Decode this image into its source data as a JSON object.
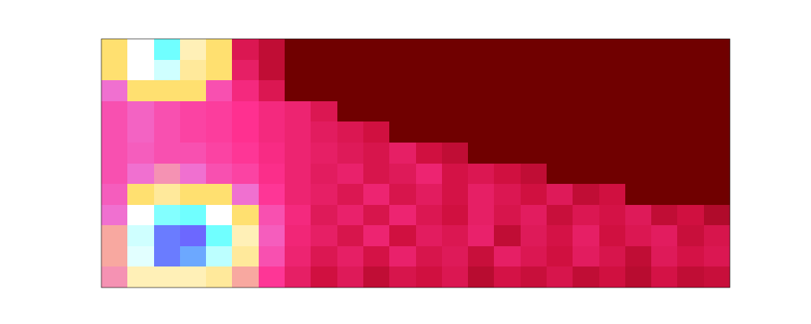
{
  "chart_data": {
    "type": "heatmap",
    "tick_labels": false,
    "zlim": [
      0,
      1
    ],
    "cells": [
      [
        0.45,
        0.55,
        0.7,
        0.5,
        0.45,
        0.15,
        0.1,
        0,
        0,
        0,
        0,
        0,
        0,
        0,
        0,
        0,
        0,
        0,
        0,
        0,
        0,
        0,
        0,
        0
      ],
      [
        0.45,
        0.55,
        0.6,
        0.48,
        0.45,
        0.18,
        0.1,
        0,
        0,
        0,
        0,
        0,
        0,
        0,
        0,
        0,
        0,
        0,
        0,
        0,
        0,
        0,
        0,
        0
      ],
      [
        0.35,
        0.45,
        0.45,
        0.45,
        0.3,
        0.22,
        0.15,
        0,
        0,
        0,
        0,
        0,
        0,
        0,
        0,
        0,
        0,
        0,
        0,
        0,
        0,
        0,
        0,
        0
      ],
      [
        0.3,
        0.33,
        0.3,
        0.28,
        0.27,
        0.25,
        0.22,
        0.2,
        0.15,
        0,
        0,
        0,
        0,
        0,
        0,
        0,
        0,
        0,
        0,
        0,
        0,
        0,
        0,
        0
      ],
      [
        0.3,
        0.33,
        0.3,
        0.28,
        0.27,
        0.25,
        0.22,
        0.2,
        0.17,
        0.15,
        0.12,
        0,
        0,
        0,
        0,
        0,
        0,
        0,
        0,
        0,
        0,
        0,
        0,
        0
      ],
      [
        0.3,
        0.32,
        0.3,
        0.3,
        0.28,
        0.26,
        0.23,
        0.2,
        0.18,
        0.16,
        0.14,
        0.18,
        0.12,
        0.1,
        0,
        0,
        0,
        0,
        0,
        0,
        0,
        0,
        0,
        0
      ],
      [
        0.3,
        0.35,
        0.38,
        0.35,
        0.3,
        0.28,
        0.24,
        0.2,
        0.17,
        0.19,
        0.14,
        0.16,
        0.2,
        0.13,
        0.15,
        0.12,
        0.1,
        0,
        0,
        0,
        0,
        0,
        0,
        0
      ],
      [
        0.32,
        0.45,
        0.48,
        0.45,
        0.45,
        0.35,
        0.26,
        0.2,
        0.18,
        0.15,
        0.2,
        0.14,
        0.17,
        0.13,
        0.18,
        0.15,
        0.12,
        0.16,
        0.1,
        0.12,
        0,
        0,
        0,
        0
      ],
      [
        0.35,
        0.55,
        0.68,
        0.7,
        0.55,
        0.45,
        0.3,
        0.22,
        0.16,
        0.19,
        0.14,
        0.2,
        0.15,
        0.12,
        0.18,
        0.14,
        0.17,
        0.11,
        0.15,
        0.13,
        0.16,
        0.1,
        0.12,
        0.08
      ],
      [
        0.4,
        0.6,
        0.85,
        0.9,
        0.7,
        0.5,
        0.32,
        0.21,
        0.18,
        0.14,
        0.2,
        0.12,
        0.17,
        0.15,
        0.19,
        0.1,
        0.16,
        0.13,
        0.18,
        0.12,
        0.15,
        0.17,
        0.11,
        0.14
      ],
      [
        0.4,
        0.58,
        0.85,
        0.8,
        0.62,
        0.48,
        0.3,
        0.2,
        0.15,
        0.18,
        0.13,
        0.19,
        0.14,
        0.16,
        0.11,
        0.18,
        0.15,
        0.12,
        0.17,
        0.14,
        0.1,
        0.16,
        0.13,
        0.15
      ],
      [
        0.38,
        0.5,
        0.5,
        0.5,
        0.48,
        0.4,
        0.26,
        0.18,
        0.12,
        0.16,
        0.1,
        0.14,
        0.12,
        0.15,
        0.09,
        0.13,
        0.11,
        0.14,
        0.1,
        0.12,
        0.09,
        0.13,
        0.1,
        0.11
      ]
    ]
  }
}
